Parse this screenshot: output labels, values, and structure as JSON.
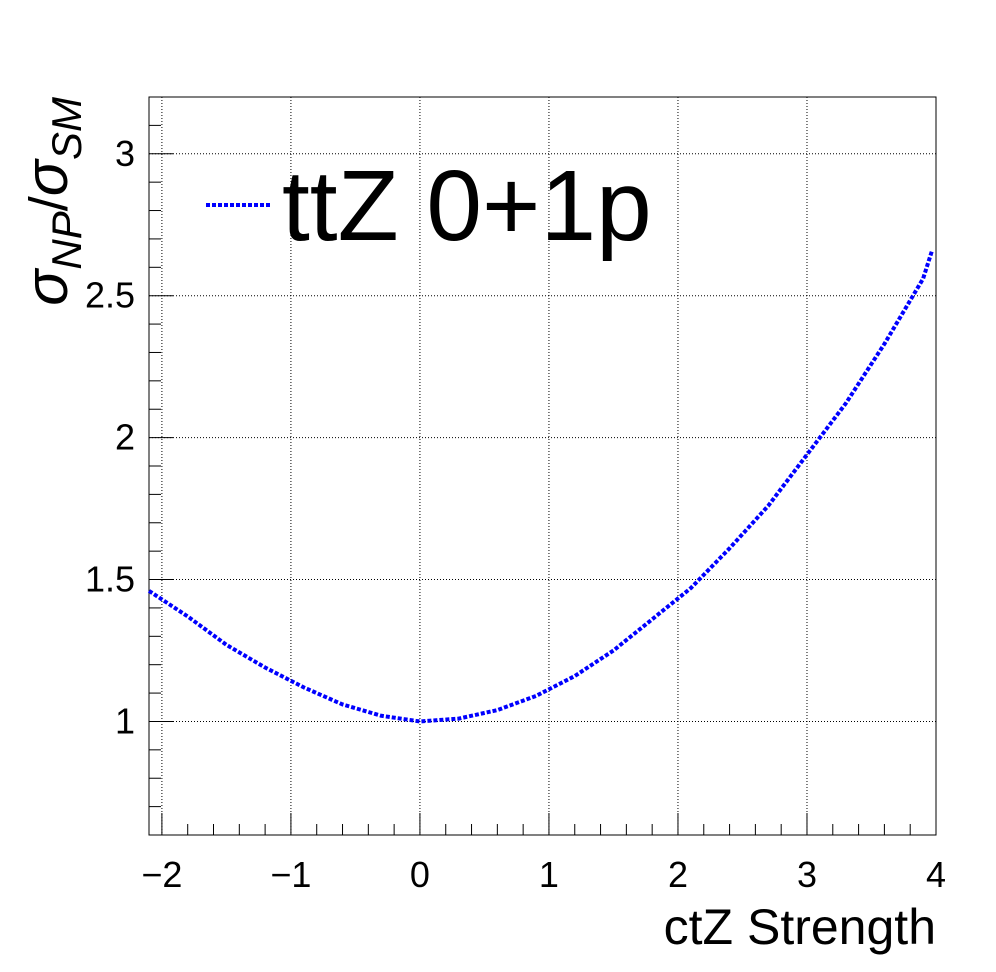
{
  "chart_data": {
    "type": "line",
    "title": "",
    "xlabel": "ctZ Strength",
    "ylabel": {
      "main": "σ",
      "sub1": "NP",
      "slash": "/",
      "main2": "σ",
      "sub2": "SM"
    },
    "xlim": [
      -2.1,
      4.0
    ],
    "ylim": [
      0.6,
      3.2
    ],
    "x_ticks": [
      -2,
      -1,
      0,
      1,
      2,
      3,
      4
    ],
    "x_tick_labels": [
      "−2",
      "−1",
      "0",
      "1",
      "2",
      "3",
      "4"
    ],
    "y_ticks": [
      1,
      1.5,
      2,
      2.5,
      3
    ],
    "y_tick_labels": [
      "1",
      "1.5",
      "2",
      "2.5",
      "3"
    ],
    "grid": true,
    "legend": {
      "placement": "top-left",
      "entries": [
        {
          "label": "ttZ 0+1p",
          "color": "#0000ff",
          "style": "dotted"
        }
      ]
    },
    "series": [
      {
        "name": "ttZ 0+1p",
        "color": "#0000ff",
        "style": "dotted",
        "x": [
          -2.1,
          -1.8,
          -1.5,
          -1.2,
          -0.9,
          -0.6,
          -0.3,
          0.0,
          0.3,
          0.6,
          0.9,
          1.2,
          1.5,
          1.8,
          2.1,
          2.4,
          2.7,
          3.0,
          3.3,
          3.6,
          3.9,
          3.97
        ],
        "y": [
          1.46,
          1.37,
          1.27,
          1.19,
          1.12,
          1.06,
          1.02,
          1.0,
          1.01,
          1.04,
          1.09,
          1.16,
          1.25,
          1.36,
          1.47,
          1.61,
          1.76,
          1.94,
          2.12,
          2.33,
          2.56,
          2.66
        ]
      }
    ]
  }
}
